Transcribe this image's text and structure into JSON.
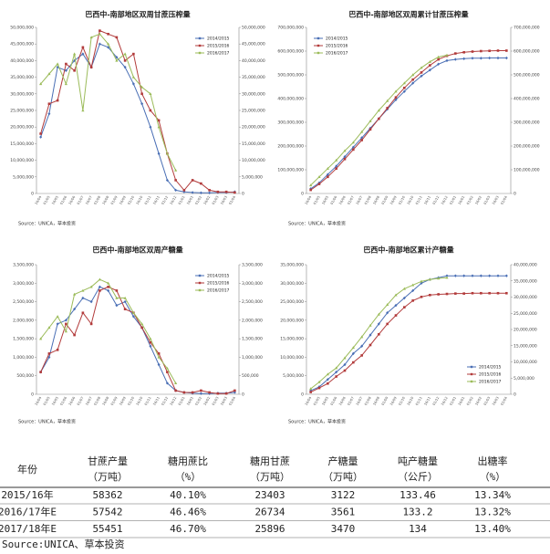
{
  "chart_data": [
    {
      "type": "line",
      "title": "巴西中-南部地区双周甘蔗压榨量",
      "source": "Source：UNICA，草本投资",
      "legend": "upper right",
      "categories": [
        "16/04",
        "01/05",
        "16/05",
        "01/06",
        "16/06",
        "01/07",
        "16/07",
        "01/08",
        "16/08",
        "01/09",
        "16/09",
        "01/10",
        "16/10",
        "01/11",
        "16/11",
        "01/12",
        "16/12",
        "01/01",
        "16/01",
        "01/02",
        "16/02",
        "01/03",
        "16/03",
        "01/04"
      ],
      "series": [
        {
          "name": "2014/2015",
          "color": "#4a6fb5",
          "marker": "diamond",
          "values": [
            17000000,
            24000000,
            38000000,
            37000000,
            40000000,
            42000000,
            38000000,
            45000000,
            44000000,
            41000000,
            38000000,
            33000000,
            27000000,
            20000000,
            12000000,
            4000000,
            1000000,
            500000,
            300000,
            200000,
            200000,
            300000,
            300000,
            500000
          ]
        },
        {
          "name": "2015/2016",
          "color": "#b23b3b",
          "marker": "square",
          "values": [
            18000000,
            27000000,
            28000000,
            39000000,
            37000000,
            44000000,
            38000000,
            49000000,
            48000000,
            47000000,
            40000000,
            42000000,
            30000000,
            25000000,
            22000000,
            12000000,
            4000000,
            1000000,
            4000000,
            3000000,
            1000000,
            500000,
            500000,
            300000
          ]
        },
        {
          "name": "2016/2017",
          "color": "#9bbb59",
          "marker": "triangle",
          "values": [
            33000000,
            36000000,
            39000000,
            33000000,
            42000000,
            25000000,
            47000000,
            48000000,
            45000000,
            40000000,
            42000000,
            35000000,
            32000000,
            30000000,
            20000000,
            12000000,
            7000000,
            null,
            null,
            null,
            null,
            null,
            null,
            null
          ]
        }
      ],
      "ylim": [
        0,
        50000000
      ],
      "yticks": [
        0,
        {
          "value": 5000000,
          "label": "5,000,000"
        },
        {
          "value": 10000000,
          "label": "10,000,000"
        },
        {
          "value": 15000000,
          "label": "15,000,000"
        },
        {
          "value": 20000000,
          "label": "20,000,000"
        },
        {
          "value": 25000000,
          "label": "25,000,000"
        },
        {
          "value": 30000000,
          "label": "30,000,000"
        },
        {
          "value": 35000000,
          "label": "35,000,000"
        },
        {
          "value": 40000000,
          "label": "40,000,000"
        },
        {
          "value": 45000000,
          "label": "45,000,000"
        },
        {
          "value": 50000000,
          "label": "50,000,000"
        }
      ],
      "y2lim": [
        0,
        50000000
      ],
      "y2ticks": [
        0,
        {
          "value": 5000000,
          "label": "5,000,000"
        },
        {
          "value": 10000000,
          "label": "10,000,000"
        },
        {
          "value": 15000000,
          "label": "15,000,000"
        },
        {
          "value": 20000000,
          "label": "20,000,000"
        },
        {
          "value": 25000000,
          "label": "25,000,000"
        },
        {
          "value": 30000000,
          "label": "30,000,000"
        },
        {
          "value": 35000000,
          "label": "35,000,000"
        },
        {
          "value": 40000000,
          "label": "40,000,000"
        },
        {
          "value": 45000000,
          "label": "45,000,000"
        },
        {
          "value": 50000000,
          "label": "50,000,000"
        }
      ]
    },
    {
      "type": "line",
      "title": "巴西中-南部地区双周累计甘蔗压榨量",
      "source": "Source：UNICA，草本投资",
      "legend": "upper left",
      "categories": [
        "16/04",
        "01/05",
        "16/05",
        "01/06",
        "16/06",
        "01/07",
        "16/07",
        "01/08",
        "16/08",
        "01/09",
        "16/09",
        "01/10",
        "16/10",
        "01/11",
        "16/11",
        "01/12",
        "16/12",
        "01/01",
        "16/01",
        "01/02",
        "16/02",
        "01/03",
        "16/03",
        "01/04"
      ],
      "series": [
        {
          "name": "2014/2015",
          "color": "#4a6fb5",
          "marker": "diamond",
          "values": [
            20000000,
            45000000,
            80000000,
            115000000,
            155000000,
            195000000,
            235000000,
            275000000,
            315000000,
            355000000,
            395000000,
            430000000,
            465000000,
            495000000,
            520000000,
            545000000,
            560000000,
            565000000,
            568000000,
            570000000,
            570000000,
            571000000,
            571000000,
            571000000
          ]
        },
        {
          "name": "2015/2016",
          "color": "#b23b3b",
          "marker": "square",
          "values": [
            15000000,
            40000000,
            70000000,
            105000000,
            145000000,
            185000000,
            225000000,
            270000000,
            315000000,
            360000000,
            405000000,
            445000000,
            480000000,
            510000000,
            540000000,
            565000000,
            580000000,
            590000000,
            595000000,
            598000000,
            600000000,
            601000000,
            602000000,
            602000000
          ]
        },
        {
          "name": "2016/2017",
          "color": "#9bbb59",
          "marker": "triangle",
          "values": [
            35000000,
            70000000,
            105000000,
            140000000,
            180000000,
            215000000,
            260000000,
            305000000,
            350000000,
            390000000,
            430000000,
            465000000,
            500000000,
            530000000,
            555000000,
            575000000,
            583000000,
            null,
            null,
            null,
            null,
            null,
            null,
            null
          ]
        }
      ],
      "ylim": [
        0,
        700000000
      ],
      "yticks": [
        0,
        {
          "value": 100000000,
          "label": "100,000,000"
        },
        {
          "value": 200000000,
          "label": "200,000,000"
        },
        {
          "value": 300000000,
          "label": "300,000,000"
        },
        {
          "value": 400000000,
          "label": "400,000,000"
        },
        {
          "value": 500000000,
          "label": "500,000,000"
        },
        {
          "value": 600000000,
          "label": "600,000,000"
        },
        {
          "value": 700000000,
          "label": "700,000,000"
        }
      ],
      "y2lim": [
        0,
        700000000
      ],
      "y2ticks": [
        0,
        {
          "value": 100000000,
          "label": "100,000,000"
        },
        {
          "value": 200000000,
          "label": "200,000,000"
        },
        {
          "value": 300000000,
          "label": "300,000,000"
        },
        {
          "value": 400000000,
          "label": "400,000,000"
        },
        {
          "value": 500000000,
          "label": "500,000,000"
        },
        {
          "value": 600000000,
          "label": "600,000,000"
        },
        {
          "value": 700000000,
          "label": "700,000,000"
        }
      ]
    },
    {
      "type": "line",
      "title": "巴西中-南部地区双周产糖量",
      "source": "Source：UNICA，草本投资",
      "legend": "upper right",
      "categories": [
        "16/04",
        "01/05",
        "16/05",
        "01/06",
        "16/06",
        "01/07",
        "16/07",
        "01/08",
        "16/08",
        "01/09",
        "16/09",
        "01/10",
        "16/10",
        "01/11",
        "16/11",
        "01/12",
        "16/12",
        "01/01",
        "16/01",
        "01/02",
        "16/02",
        "01/03",
        "16/03",
        "01/04"
      ],
      "series": [
        {
          "name": "2014/2015",
          "color": "#4a6fb5",
          "marker": "diamond",
          "values": [
            600000,
            1000000,
            1900000,
            2000000,
            2300000,
            2600000,
            2500000,
            2900000,
            2800000,
            2400000,
            2500000,
            2100000,
            1800000,
            1300000,
            800000,
            300000,
            100000,
            50000,
            30000,
            20000,
            20000,
            30000,
            30000,
            50000
          ]
        },
        {
          "name": "2015/2016",
          "color": "#b23b3b",
          "marker": "square",
          "values": [
            600000,
            1100000,
            1200000,
            1900000,
            1600000,
            2200000,
            1900000,
            2800000,
            2900000,
            2800000,
            2300000,
            2200000,
            1800000,
            1400000,
            1100000,
            600000,
            100000,
            50000,
            50000,
            100000,
            50000,
            20000,
            20000,
            100000
          ]
        },
        {
          "name": "2016/2017",
          "color": "#9bbb59",
          "marker": "triangle",
          "values": [
            1500000,
            1800000,
            2100000,
            1700000,
            2700000,
            2800000,
            2900000,
            3100000,
            3000000,
            2600000,
            2600000,
            2200000,
            1900000,
            1500000,
            1000000,
            700000,
            300000,
            null,
            null,
            null,
            null,
            null,
            null,
            null
          ]
        }
      ],
      "ylim": [
        0,
        3500000
      ],
      "yticks": [
        0,
        {
          "value": 500000,
          "label": "500,000"
        },
        {
          "value": 1000000,
          "label": "1,000,000"
        },
        {
          "value": 1500000,
          "label": "1,500,000"
        },
        {
          "value": 2000000,
          "label": "2,000,000"
        },
        {
          "value": 2500000,
          "label": "2,500,000"
        },
        {
          "value": 3000000,
          "label": "3,000,000"
        },
        {
          "value": 3500000,
          "label": "3,500,000"
        }
      ],
      "y2lim": [
        0,
        3500000
      ],
      "y2ticks": [
        0,
        {
          "value": 500000,
          "label": "500,000"
        },
        {
          "value": 1000000,
          "label": "1,000,000"
        },
        {
          "value": 1500000,
          "label": "1,500,000"
        },
        {
          "value": 2000000,
          "label": "2,000,000"
        },
        {
          "value": 2500000,
          "label": "2,500,000"
        },
        {
          "value": 3000000,
          "label": "3,000,000"
        },
        {
          "value": 3500000,
          "label": "3,500,000"
        }
      ]
    },
    {
      "type": "line",
      "title": "巴西中-南部地区累计产糖量",
      "source": "Source：UNICA，草本投资",
      "legend": "lower right",
      "categories": [
        "16/04",
        "01/05",
        "16/05",
        "01/06",
        "16/06",
        "01/07",
        "16/07",
        "01/08",
        "16/08",
        "01/09",
        "16/09",
        "01/10",
        "16/10",
        "01/11",
        "16/11",
        "01/12",
        "16/12",
        "01/01",
        "16/01",
        "01/02",
        "16/02",
        "01/03",
        "16/03",
        "01/04"
      ],
      "series": [
        {
          "name": "2014/2015",
          "color": "#4a6fb5",
          "marker": "diamond",
          "values": [
            1000000,
            2000000,
            4000000,
            6000000,
            8000000,
            11000000,
            13000000,
            16000000,
            19000000,
            22000000,
            24000000,
            26000000,
            28000000,
            30000000,
            31000000,
            31500000,
            32000000,
            32000000,
            32000000,
            32000000,
            32000000,
            32000000,
            32000000,
            32000000
          ]
        },
        {
          "name": "2015/2016",
          "color": "#b23b3b",
          "marker": "square",
          "values": [
            600000,
            1700000,
            2900000,
            4800000,
            6400000,
            8600000,
            10500000,
            13300000,
            16200000,
            19000000,
            21300000,
            23500000,
            25300000,
            26300000,
            26800000,
            27000000,
            27100000,
            27200000,
            27200000,
            27300000,
            27300000,
            27300000,
            27300000,
            27300000
          ]
        },
        {
          "name": "2016/2017",
          "color": "#9bbb59",
          "marker": "triangle",
          "values": [
            1500000,
            3300000,
            5400000,
            7100000,
            9800000,
            12600000,
            15500000,
            18600000,
            21600000,
            24200000,
            26800000,
            28500000,
            29500000,
            30500000,
            31000000,
            31300000,
            31500000,
            null,
            null,
            null,
            null,
            null,
            null,
            null
          ]
        }
      ],
      "ylim": [
        0,
        35000000
      ],
      "yticks": [
        0,
        {
          "value": 5000000,
          "label": "5,000,000"
        },
        {
          "value": 10000000,
          "label": "10,000,000"
        },
        {
          "value": 15000000,
          "label": "15,000,000"
        },
        {
          "value": 20000000,
          "label": "20,000,000"
        },
        {
          "value": 25000000,
          "label": "25,000,000"
        },
        {
          "value": 30000000,
          "label": "30,000,000"
        },
        {
          "value": 35000000,
          "label": "35,000,000"
        }
      ],
      "y2lim": [
        0,
        40000000
      ],
      "y2ticks": [
        0,
        {
          "value": 5000000,
          "label": "5,000,000"
        },
        {
          "value": 10000000,
          "label": "10,000,000"
        },
        {
          "value": 15000000,
          "label": "15,000,000"
        },
        {
          "value": 20000000,
          "label": "20,000,000"
        },
        {
          "value": 25000000,
          "label": "25,000,000"
        },
        {
          "value": 30000000,
          "label": "30,000,000"
        },
        {
          "value": 35000000,
          "label": "35,000,000"
        },
        {
          "value": 40000000,
          "label": "40,000,000"
        }
      ]
    }
  ],
  "table": {
    "highlight_color": "#e0261b",
    "highlight_columns": [
      2,
      4,
      6
    ],
    "headers": [
      [
        "年份"
      ],
      [
        "甘蔗产量",
        "（万吨）"
      ],
      [
        "糖用蔗比",
        "（%）"
      ],
      [
        "糖用甘蔗",
        "（万吨）"
      ],
      [
        "产糖量",
        "（万吨）"
      ],
      [
        "吨产糖量",
        "（公斤）"
      ],
      [
        "出糖率",
        "（%）"
      ]
    ],
    "rows": [
      [
        "2015/16年",
        "58362",
        "40.10%",
        "23403",
        "3122",
        "133.46",
        "13.34%"
      ],
      [
        "2016/17年E",
        "57542",
        "46.46%",
        "26734",
        "3561",
        "133.2",
        "13.32%"
      ],
      [
        "2017/18年E",
        "55451",
        "46.70%",
        "25896",
        "3470",
        "134",
        "13.40%"
      ]
    ],
    "source": "Source:UNICA、草本投资"
  }
}
